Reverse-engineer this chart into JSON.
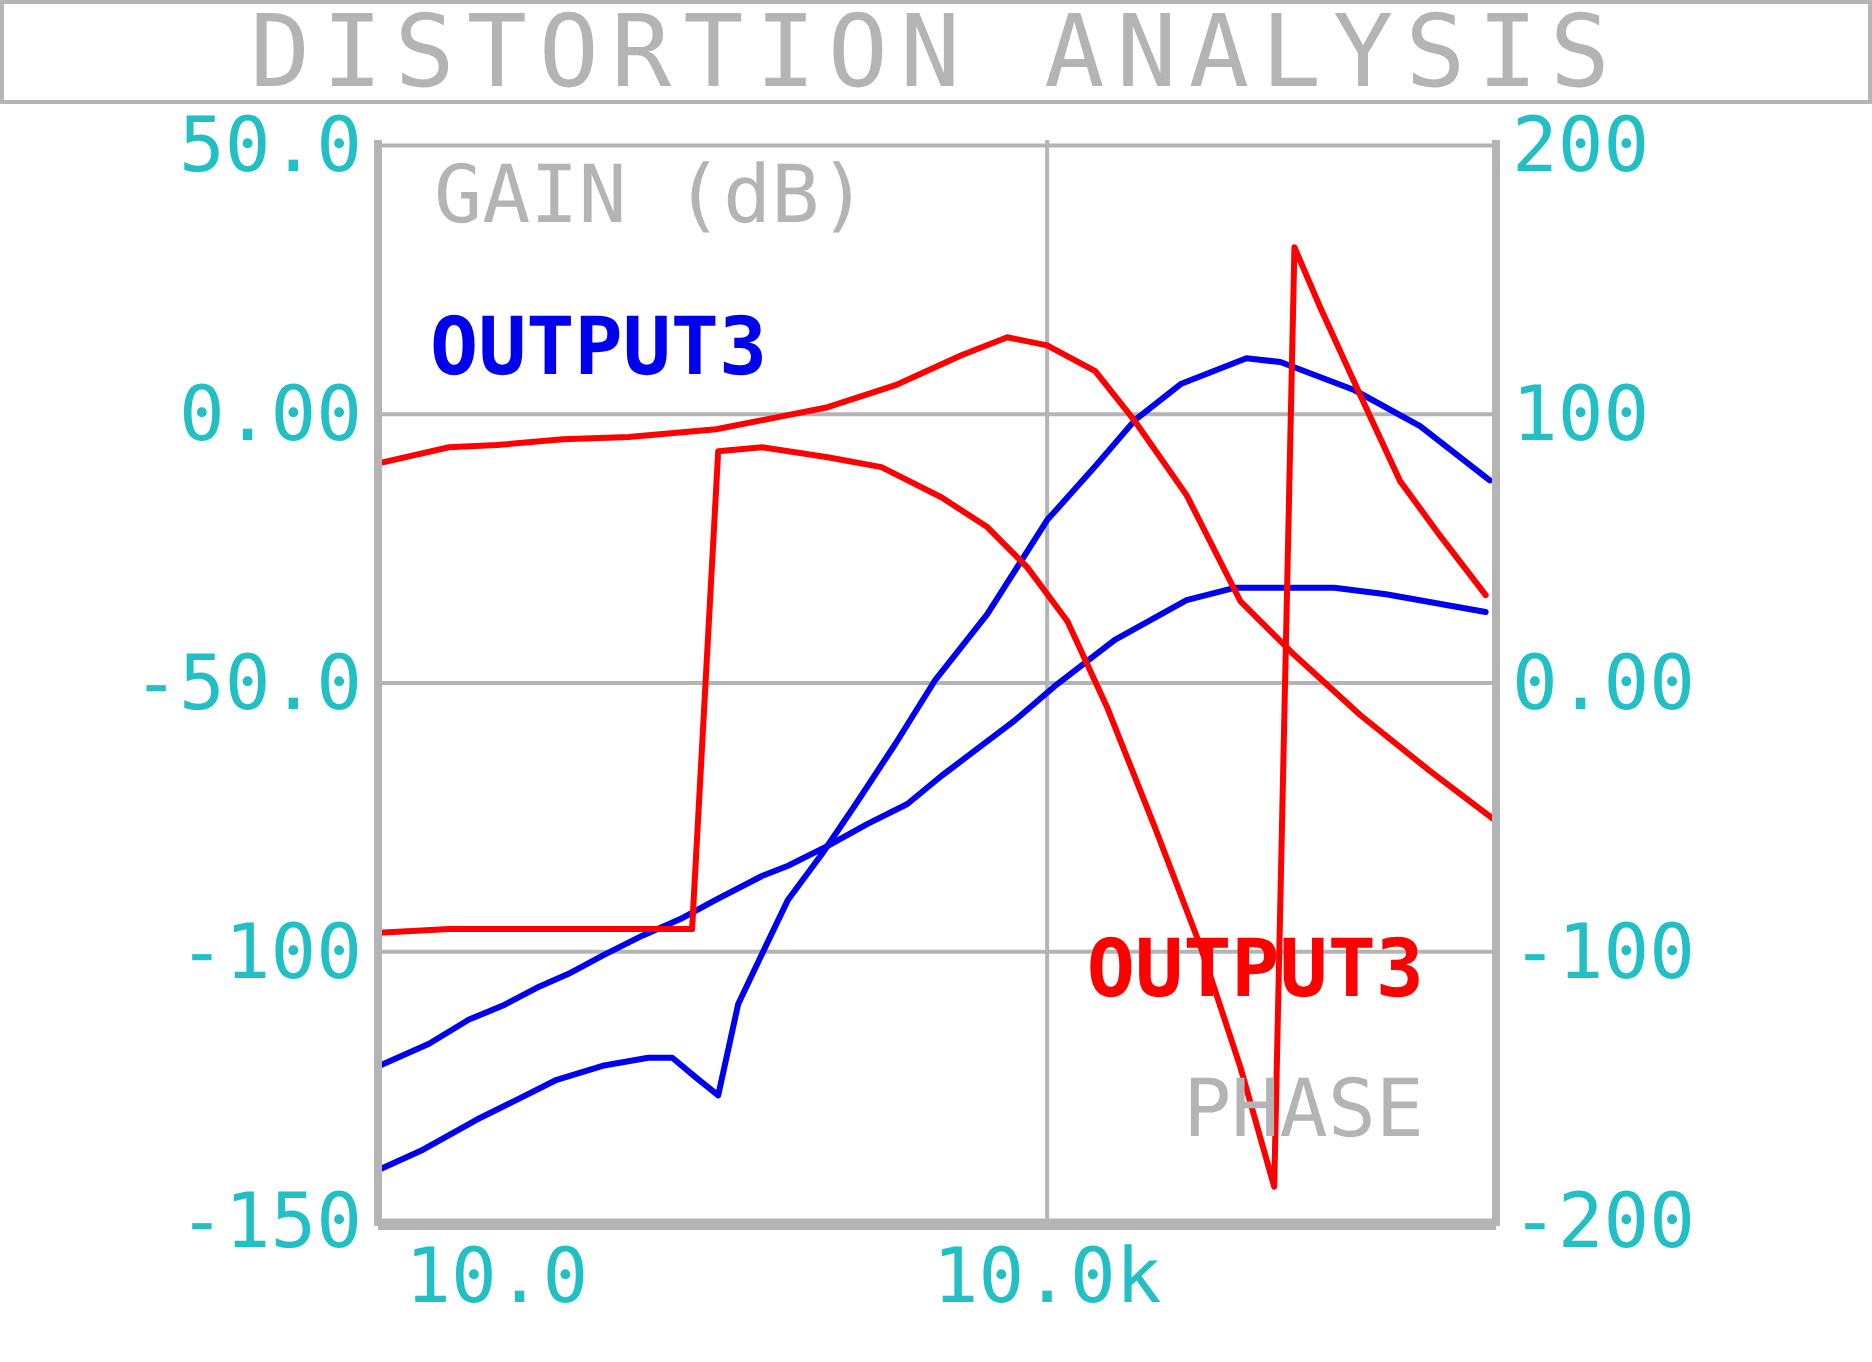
{
  "chart_data": {
    "type": "line",
    "title": "DISTORTION ANALYSIS",
    "ylabel": "GAIN (dB)",
    "y2label": "PHASE",
    "log": "x",
    "grid": "y",
    "marker": "none",
    "line_style": "solid",
    "xlim": [
      2.25,
      2800000
    ],
    "xticks": [
      {
        "value": 10,
        "label": "10.0"
      },
      {
        "value": 10000,
        "label": "10.0k"
      }
    ],
    "ylim": [
      -151,
      51
    ],
    "yticks": [
      {
        "value": 50,
        "label": "50.0"
      },
      {
        "value": 0,
        "label": "0.00"
      },
      {
        "value": -50,
        "label": "-50.0"
      },
      -100,
      -150
    ],
    "y2lim": [
      -202,
      202
    ],
    "y2ticks": [
      200,
      100,
      {
        "value": 0,
        "label": "0.00"
      },
      -100,
      -200
    ],
    "ref_lines": [
      {
        "axis": "x",
        "value": 10000,
        "color": "#b4b4b4"
      }
    ],
    "series": [
      {
        "name": "OUTPUT3",
        "color": "#0000ee",
        "x": [
          2.29,
          4.27,
          7.05,
          10.8,
          16.5,
          24.6,
          37.7,
          62.1,
          103,
          157,
          279,
          387,
          637,
          1050,
          1730,
          2650,
          6700,
          11000,
          23400,
          57600,
          105000,
          368000,
          705000,
          2460000
        ],
        "values": [
          -121.2,
          -117.1,
          -112.6,
          -110.0,
          -106.7,
          -104.1,
          -100.7,
          -97.0,
          -93.7,
          -90.3,
          -85.9,
          -84.0,
          -80.3,
          -76.2,
          -72.5,
          -67.3,
          -56.9,
          -50.6,
          -42.0,
          -34.6,
          -32.3,
          -32.3,
          -33.5,
          -36.8
        ]
      },
      {
        "color": "#0000ee",
        "x": [
          2.29,
          3.96,
          7.79,
          12.9,
          21.2,
          37.7,
          67,
          90.5,
          122,
          161,
          207,
          279,
          387,
          592,
          906,
          1490,
          2460,
          4720,
          10000,
          18300,
          30100,
          53500,
          122000,
          187000,
          472000,
          1080000,
          2590000
        ],
        "values": [
          -140.5,
          -136.8,
          -131.2,
          -127.5,
          -123.8,
          -121.2,
          -119.7,
          -119.7,
          -123.4,
          -126.7,
          -109.7,
          -100.4,
          -90.3,
          -81.8,
          -72.5,
          -61.3,
          -49.4,
          -37.2,
          -19.7,
          -9.7,
          -1.1,
          5.6,
          10.4,
          9.7,
          4.5,
          -2.2,
          -12.3
        ]
      },
      {
        "name": "OUTPUT3",
        "color": "#ff0000",
        "axis": "y2",
        "x": [
          2.29,
          5.48,
          116,
          161,
          279,
          637,
          1250,
          2650,
          4720,
          7780,
          12900,
          21200,
          38600,
          68700,
          113000,
          173000,
          223000,
          308000,
          509000,
          840000,
          1380000,
          2460000
        ],
        "values": [
          -92.9,
          -91.5,
          -91.5,
          86.2,
          87.7,
          84.0,
          80.3,
          69.1,
          58.0,
          43.1,
          23.0,
          -8.9,
          -53.5,
          -98.1,
          -142.8,
          -187.4,
          162.1,
          139.8,
          107.1,
          75.1,
          55.0,
          32.7
        ]
      },
      {
        "color": "#ff0000",
        "axis": "y2",
        "x": [
          2.29,
          5.48,
          10,
          22.9,
          52.2,
          157,
          637,
          1490,
          3410,
          6070,
          10000,
          18300,
          30100,
          57600,
          113000,
          223000,
          509000,
          1220000,
          2790000
        ],
        "values": [
          81.8,
          87.7,
          88.5,
          90.7,
          91.5,
          94.4,
          102.6,
          110.8,
          121.9,
          128.6,
          125.6,
          116.0,
          97.4,
          69.9,
          30.5,
          10.4,
          -11.9,
          -32.7,
          -51.3
        ]
      }
    ]
  }
}
